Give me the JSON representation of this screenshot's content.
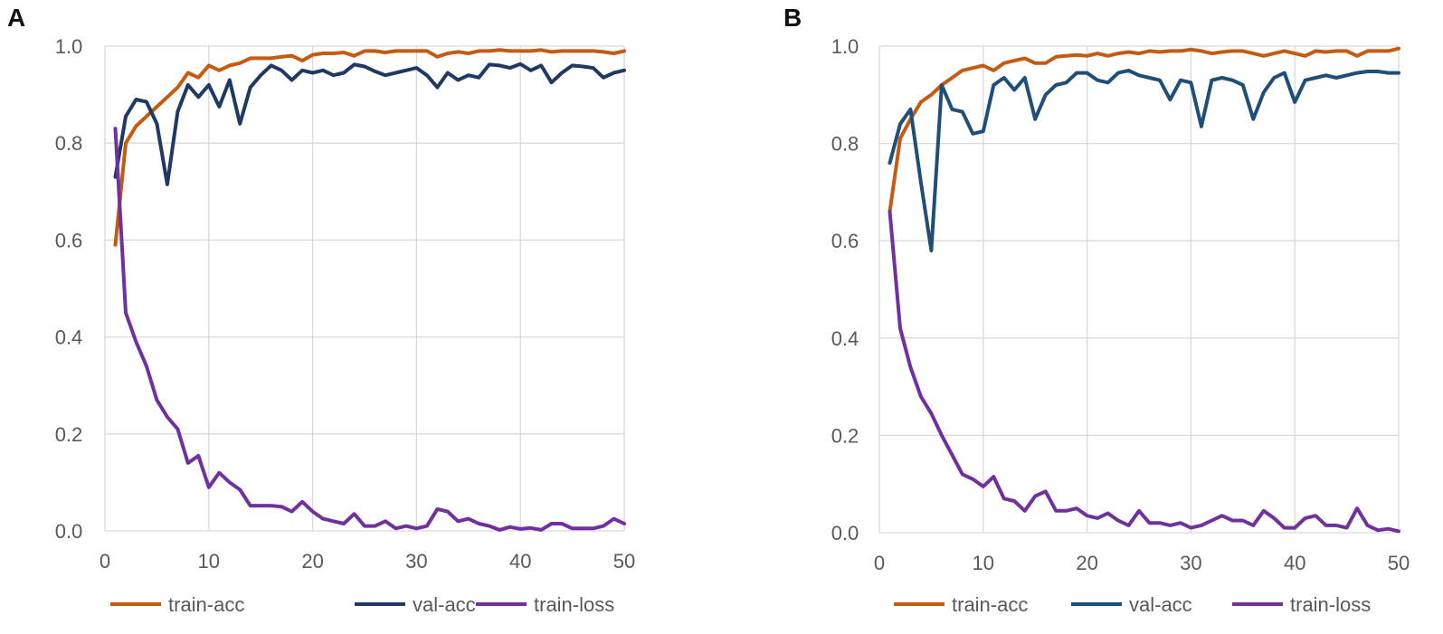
{
  "colors": {
    "train_acc": "#C55A11",
    "val_acc_A": "#1F3864",
    "val_acc_B": "#1F4E79",
    "train_loss": "#7030A0",
    "grid": "#D9D9D9"
  },
  "chart_data": [
    {
      "panel": "A",
      "type": "line",
      "x": [
        1,
        2,
        3,
        4,
        5,
        6,
        7,
        8,
        9,
        10,
        11,
        12,
        13,
        14,
        15,
        16,
        17,
        18,
        19,
        20,
        21,
        22,
        23,
        24,
        25,
        26,
        27,
        28,
        29,
        30,
        31,
        32,
        33,
        34,
        35,
        36,
        37,
        38,
        39,
        40,
        41,
        42,
        43,
        44,
        45,
        46,
        47,
        48,
        49,
        50
      ],
      "xlim": [
        0,
        50
      ],
      "ylim": [
        0,
        1
      ],
      "xticks": [
        "0",
        "10",
        "20",
        "30",
        "40",
        "50"
      ],
      "yticks": [
        "0.0",
        "0.2",
        "0.4",
        "0.6",
        "0.8",
        "1.0"
      ],
      "grid": "both",
      "legend_position": "bottom",
      "series": [
        {
          "name": "train-acc",
          "color_key": "train_acc",
          "values": [
            0.59,
            0.8,
            0.835,
            0.855,
            0.875,
            0.895,
            0.915,
            0.945,
            0.935,
            0.96,
            0.95,
            0.96,
            0.965,
            0.975,
            0.975,
            0.975,
            0.978,
            0.98,
            0.97,
            0.982,
            0.985,
            0.985,
            0.987,
            0.98,
            0.99,
            0.99,
            0.987,
            0.99,
            0.99,
            0.99,
            0.99,
            0.978,
            0.985,
            0.988,
            0.985,
            0.99,
            0.99,
            0.992,
            0.99,
            0.99,
            0.99,
            0.992,
            0.988,
            0.99,
            0.99,
            0.99,
            0.99,
            0.988,
            0.985,
            0.99
          ]
        },
        {
          "name": "val-acc",
          "color_key": "val_acc_A",
          "values": [
            0.73,
            0.855,
            0.89,
            0.885,
            0.84,
            0.715,
            0.865,
            0.92,
            0.895,
            0.92,
            0.875,
            0.93,
            0.84,
            0.915,
            0.94,
            0.96,
            0.95,
            0.93,
            0.95,
            0.945,
            0.95,
            0.94,
            0.945,
            0.962,
            0.958,
            0.948,
            0.94,
            0.945,
            0.95,
            0.955,
            0.94,
            0.915,
            0.945,
            0.93,
            0.94,
            0.935,
            0.962,
            0.96,
            0.955,
            0.963,
            0.95,
            0.96,
            0.925,
            0.945,
            0.96,
            0.958,
            0.955,
            0.935,
            0.945,
            0.95
          ]
        },
        {
          "name": "train-loss",
          "color_key": "train_loss",
          "values": [
            0.83,
            0.45,
            0.39,
            0.34,
            0.27,
            0.235,
            0.21,
            0.14,
            0.155,
            0.09,
            0.12,
            0.1,
            0.085,
            0.052,
            0.052,
            0.052,
            0.05,
            0.04,
            0.06,
            0.04,
            0.025,
            0.02,
            0.015,
            0.035,
            0.01,
            0.01,
            0.02,
            0.005,
            0.01,
            0.005,
            0.01,
            0.045,
            0.04,
            0.02,
            0.025,
            0.015,
            0.01,
            0.002,
            0.008,
            0.004,
            0.006,
            0.002,
            0.015,
            0.015,
            0.005,
            0.005,
            0.005,
            0.01,
            0.025,
            0.015
          ]
        }
      ]
    },
    {
      "panel": "B",
      "type": "line",
      "x": [
        1,
        2,
        3,
        4,
        5,
        6,
        7,
        8,
        9,
        10,
        11,
        12,
        13,
        14,
        15,
        16,
        17,
        18,
        19,
        20,
        21,
        22,
        23,
        24,
        25,
        26,
        27,
        28,
        29,
        30,
        31,
        32,
        33,
        34,
        35,
        36,
        37,
        38,
        39,
        40,
        41,
        42,
        43,
        44,
        45,
        46,
        47,
        48,
        49,
        50
      ],
      "xlim": [
        0,
        50
      ],
      "ylim": [
        0,
        1
      ],
      "xticks": [
        "0",
        "10",
        "20",
        "30",
        "40",
        "50"
      ],
      "yticks": [
        "0.0",
        "0.2",
        "0.4",
        "0.6",
        "0.8",
        "1.0"
      ],
      "grid": "both",
      "legend_position": "bottom",
      "series": [
        {
          "name": "train-acc",
          "color_key": "train_acc",
          "values": [
            0.66,
            0.81,
            0.85,
            0.885,
            0.9,
            0.92,
            0.935,
            0.95,
            0.955,
            0.96,
            0.95,
            0.965,
            0.97,
            0.975,
            0.965,
            0.965,
            0.978,
            0.98,
            0.982,
            0.98,
            0.985,
            0.98,
            0.985,
            0.988,
            0.985,
            0.99,
            0.988,
            0.99,
            0.99,
            0.993,
            0.99,
            0.985,
            0.988,
            0.99,
            0.99,
            0.985,
            0.98,
            0.985,
            0.99,
            0.985,
            0.98,
            0.99,
            0.988,
            0.99,
            0.99,
            0.98,
            0.99,
            0.99,
            0.99,
            0.995
          ]
        },
        {
          "name": "val-acc",
          "color_key": "val_acc_B",
          "values": [
            0.76,
            0.84,
            0.87,
            0.72,
            0.58,
            0.92,
            0.87,
            0.865,
            0.82,
            0.825,
            0.92,
            0.935,
            0.91,
            0.935,
            0.85,
            0.9,
            0.92,
            0.925,
            0.945,
            0.945,
            0.93,
            0.925,
            0.945,
            0.95,
            0.94,
            0.935,
            0.93,
            0.89,
            0.93,
            0.925,
            0.835,
            0.93,
            0.935,
            0.93,
            0.92,
            0.85,
            0.905,
            0.935,
            0.945,
            0.885,
            0.93,
            0.935,
            0.94,
            0.935,
            0.94,
            0.945,
            0.948,
            0.948,
            0.945,
            0.945
          ]
        },
        {
          "name": "train-loss",
          "color_key": "train_loss",
          "values": [
            0.66,
            0.42,
            0.34,
            0.28,
            0.245,
            0.2,
            0.16,
            0.12,
            0.11,
            0.095,
            0.115,
            0.07,
            0.065,
            0.045,
            0.075,
            0.085,
            0.045,
            0.045,
            0.05,
            0.035,
            0.03,
            0.04,
            0.025,
            0.015,
            0.045,
            0.02,
            0.02,
            0.015,
            0.02,
            0.01,
            0.015,
            0.025,
            0.035,
            0.025,
            0.025,
            0.015,
            0.045,
            0.03,
            0.01,
            0.01,
            0.03,
            0.035,
            0.015,
            0.015,
            0.01,
            0.05,
            0.015,
            0.005,
            0.008,
            0.003
          ]
        }
      ]
    }
  ],
  "panels": {
    "A": {
      "letter": "A"
    },
    "B": {
      "letter": "B"
    }
  }
}
